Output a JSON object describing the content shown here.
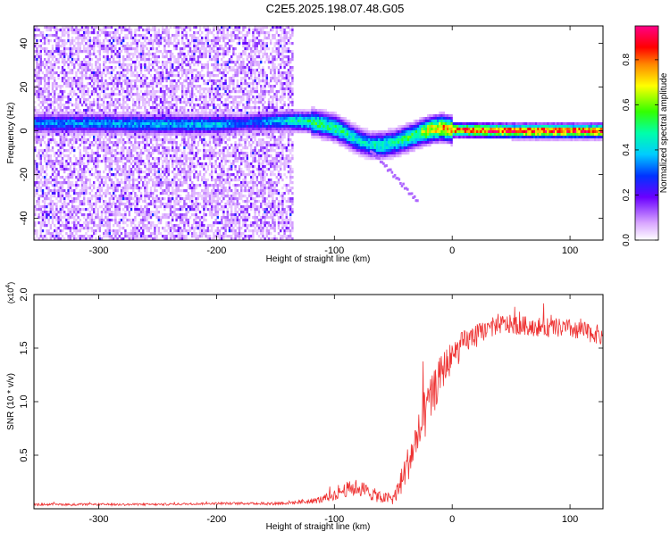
{
  "title": "C2E5.2025.198.07.48.G05",
  "chart_data": [
    {
      "type": "heatmap",
      "xlabel": "Height of straight line (km)",
      "ylabel": "Frequency (Hz)",
      "xlim": [
        -355,
        128
      ],
      "ylim": [
        -50,
        48
      ],
      "xticks": [
        -300,
        -200,
        -100,
        0,
        100
      ],
      "xtick_labels": [
        "-300",
        "-200",
        "-100",
        "0",
        "100"
      ],
      "yticks": [
        -40,
        -20,
        0,
        20,
        40
      ],
      "ytick_labels": [
        "-40",
        "-20",
        "0",
        "20",
        "40"
      ],
      "colorbar": {
        "label": "Normalized spectral amplitude",
        "range": [
          0,
          0.95
        ],
        "ticks": [
          0.0,
          0.2,
          0.4,
          0.6,
          0.8
        ],
        "tick_labels": [
          "0.0",
          "0.2",
          "0.4",
          "0.6",
          "0.8"
        ],
        "colormap": "rainbow (white-violet-blue-cyan-green-yellow-red-magenta)"
      },
      "ridge": {
        "x": [
          -355,
          -300,
          -250,
          -200,
          -180,
          -150,
          -130,
          -120,
          -100,
          -90,
          -80,
          -70,
          -60,
          -50,
          -40,
          -30,
          -20,
          -10,
          0,
          20,
          50,
          100,
          128
        ],
        "y": [
          4,
          4,
          3.5,
          3.5,
          4,
          5,
          5,
          4.5,
          2,
          -1,
          -4,
          -6,
          -6,
          -5,
          -3,
          -1,
          1,
          2,
          1,
          0.8,
          0.5,
          0.5,
          0.5
        ],
        "amplitude": [
          0.35,
          0.38,
          0.4,
          0.42,
          0.3,
          0.4,
          0.5,
          0.55,
          0.55,
          0.5,
          0.45,
          0.45,
          0.5,
          0.5,
          0.55,
          0.6,
          0.75,
          0.8,
          0.85,
          0.9,
          0.92,
          0.92,
          0.9
        ]
      }
    },
    {
      "type": "line",
      "xlabel": "Height of straight line (km)",
      "ylabel": "SNR (10 * v/v)",
      "y_multiplier": "(x10",
      "y_multiplier_exp": "4",
      "y_multiplier_close": ")",
      "xlim": [
        -355,
        128
      ],
      "ylim": [
        0,
        2.0
      ],
      "xticks": [
        -300,
        -200,
        -100,
        0,
        100
      ],
      "xtick_labels": [
        "-300",
        "-200",
        "-100",
        "0",
        "100"
      ],
      "yticks": [
        0.5,
        1.0,
        1.5,
        2.0
      ],
      "ytick_labels": [
        "0.5",
        "1.0",
        "1.5",
        "2.0"
      ],
      "color": "#ee3333",
      "series": [
        {
          "x": [
            -355,
            -300,
            -250,
            -200,
            -150,
            -130,
            -120,
            -110,
            -100,
            -90,
            -80,
            -70,
            -60,
            -50,
            -45,
            -40,
            -35,
            -30,
            -25,
            -20,
            -15,
            -10,
            -5,
            0,
            5,
            10,
            20,
            30,
            40,
            50,
            70,
            100,
            128
          ],
          "y": [
            0.04,
            0.04,
            0.04,
            0.05,
            0.05,
            0.06,
            0.07,
            0.09,
            0.13,
            0.18,
            0.2,
            0.15,
            0.1,
            0.1,
            0.2,
            0.35,
            0.5,
            0.65,
            0.8,
            0.95,
            1.1,
            1.25,
            1.35,
            1.42,
            1.48,
            1.55,
            1.62,
            1.68,
            1.72,
            1.72,
            1.7,
            1.68,
            1.62
          ],
          "noise": [
            0.01,
            0.01,
            0.01,
            0.01,
            0.015,
            0.02,
            0.025,
            0.035,
            0.05,
            0.07,
            0.08,
            0.07,
            0.05,
            0.06,
            0.1,
            0.15,
            0.18,
            0.2,
            0.22,
            0.22,
            0.2,
            0.18,
            0.16,
            0.15,
            0.14,
            0.12,
            0.1,
            0.09,
            0.09,
            0.09,
            0.09,
            0.09,
            0.09
          ]
        }
      ]
    }
  ]
}
